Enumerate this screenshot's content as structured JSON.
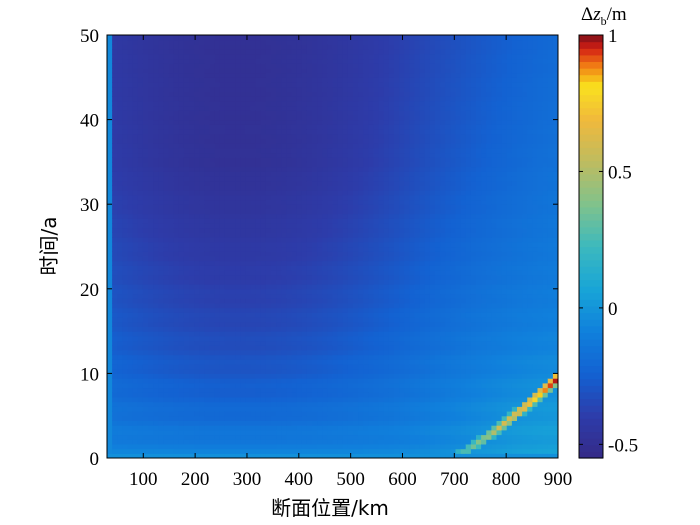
{
  "chart_data": {
    "type": "heatmap",
    "xlabel": "断面位置/km",
    "ylabel": "时间/a",
    "xlim": [
      30,
      900
    ],
    "ylim": [
      0,
      50
    ],
    "x_ticks": [
      "100",
      "200",
      "300",
      "400",
      "500",
      "600",
      "700",
      "800",
      "900"
    ],
    "x_tick_values": [
      100,
      200,
      300,
      400,
      500,
      600,
      700,
      800,
      900
    ],
    "y_ticks": [
      "0",
      "10",
      "20",
      "30",
      "40",
      "50"
    ],
    "y_tick_values": [
      0,
      10,
      20,
      30,
      40,
      50
    ],
    "colorbar": {
      "title_prefix": "Δ",
      "title_var": "z",
      "title_sub": "b",
      "title_suffix": "/m",
      "range": [
        -0.55,
        1.0
      ],
      "ticks": [
        "-0.5",
        "0",
        "0.5",
        "1"
      ],
      "tick_values": [
        -0.5,
        0,
        0.5,
        1
      ]
    },
    "colormap": "parula",
    "description_values": {
      "min_trough_center_km": 280,
      "min_value_approx": -0.45,
      "deposition_front_max": 1.0
    },
    "grid": false
  }
}
